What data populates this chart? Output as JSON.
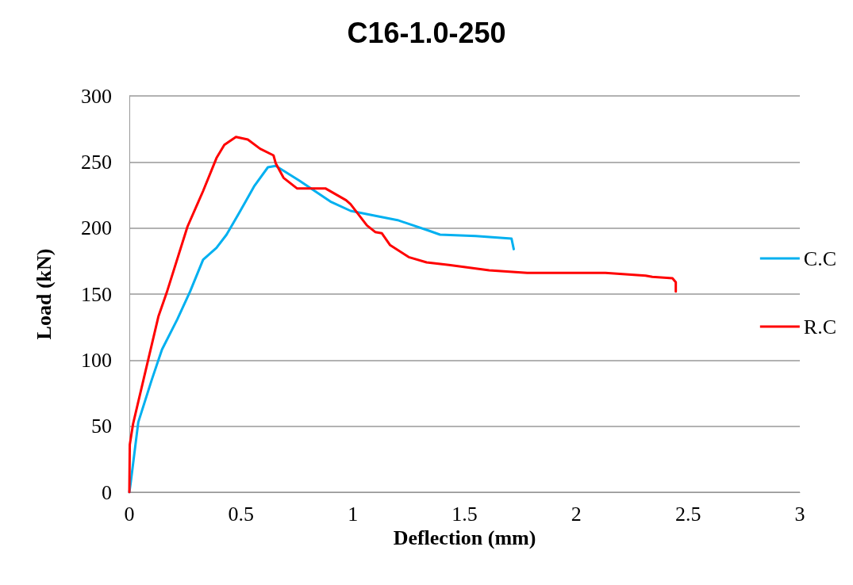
{
  "chart_data": {
    "type": "line",
    "title": "C16-1.0-250",
    "xlabel": "Deflection (mm)",
    "ylabel": "Load (kN)",
    "xlim": [
      0,
      3
    ],
    "xticks": [
      0,
      0.5,
      1,
      1.5,
      2,
      2.5,
      3
    ],
    "ylim": [
      0,
      300
    ],
    "yticks": [
      0,
      50,
      100,
      150,
      200,
      250,
      300
    ],
    "grid": "y",
    "legend": "right",
    "marker": "none",
    "line_style": "solid",
    "series": [
      {
        "name": "C.C",
        "color": "#00b0f0",
        "x": [
          0,
          0.006,
          0.04,
          0.1,
          0.146,
          0.215,
          0.272,
          0.33,
          0.39,
          0.435,
          0.49,
          0.56,
          0.62,
          0.655,
          0.76,
          0.9,
          0.99,
          1.11,
          1.2,
          1.34,
          1.39,
          1.55,
          1.71,
          1.72
        ],
        "values": [
          0,
          7,
          53,
          85,
          108,
          131,
          152,
          176,
          185,
          195,
          211,
          232,
          246,
          247,
          236,
          220,
          213,
          209,
          206,
          198,
          195,
          194,
          192,
          184
        ]
      },
      {
        "name": "R.C",
        "color": "#ff0000",
        "x": [
          0,
          0.002,
          0.017,
          0.063,
          0.13,
          0.167,
          0.26,
          0.33,
          0.39,
          0.425,
          0.477,
          0.53,
          0.585,
          0.645,
          0.655,
          0.69,
          0.75,
          0.877,
          0.97,
          0.99,
          1.063,
          1.1,
          1.13,
          1.167,
          1.25,
          1.33,
          1.43,
          1.61,
          1.78,
          2.01,
          2.13,
          2.31,
          2.34,
          2.43,
          2.445,
          2.445
        ],
        "values": [
          0,
          36,
          52,
          85,
          133,
          151,
          201,
          228,
          253,
          263,
          269,
          267,
          260,
          255,
          249,
          238,
          230,
          230,
          221,
          218,
          202,
          197,
          196,
          187,
          178,
          174,
          172,
          168,
          166,
          166,
          166,
          164,
          163,
          162,
          159,
          152
        ]
      }
    ]
  }
}
